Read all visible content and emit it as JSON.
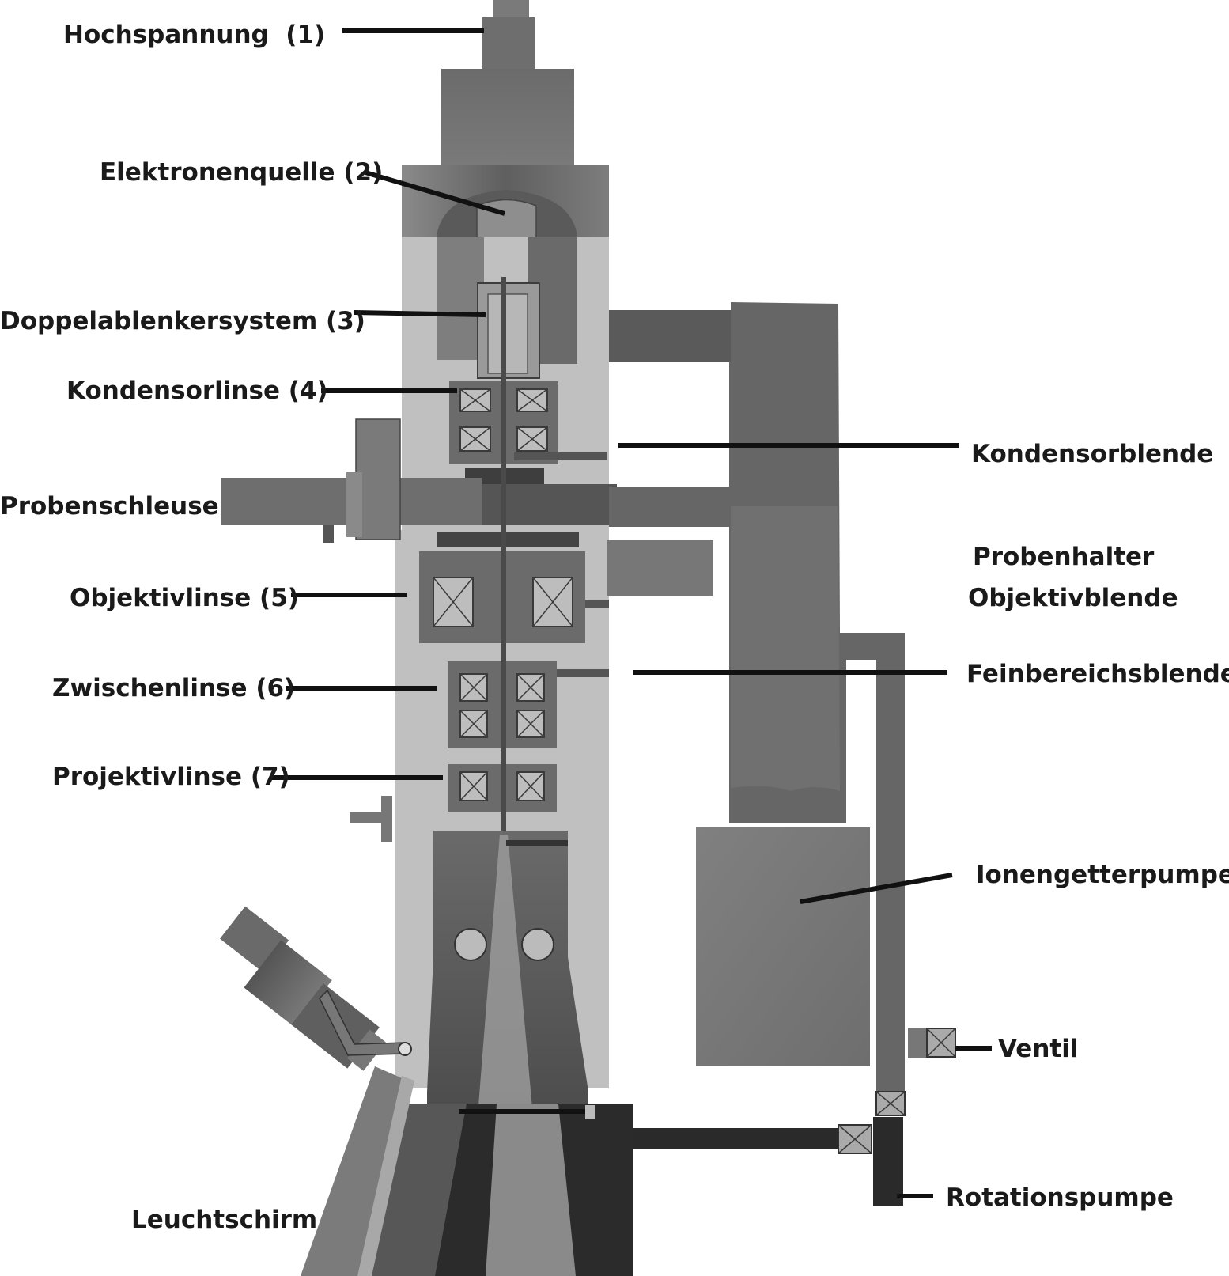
{
  "diagram": {
    "title": "",
    "labels": {
      "hochspannung": "Hochspannung  (1)",
      "elektronenquelle": "Elektronenquelle (2)",
      "doppelablenkersystem": "Doppelablenkersystem (3)",
      "kondensorlinse": "Kondensorlinse (4)",
      "probenschleuse": "Probenschleuse",
      "objektivlinse": "Objektivlinse (5)",
      "zwischenlinse": "Zwischenlinse (6)",
      "projektivlinse": "Projektivlinse (7)",
      "leuchtschirm": "Leuchtschirm",
      "kondensorblende": "Kondensorblende",
      "probenhalter": "Probenhalter",
      "objektivblende": "Objektivblende",
      "feinbereichsblende": "Feinbereichsblende",
      "ionengetterpumpe": "Ionengetterpumpe",
      "ventil": "Ventil",
      "rotationspumpe": "Rotationspumpe"
    },
    "colors": {
      "background": "#ffffff",
      "column_light": "#bcbcbc",
      "column_mid": "#7d7d7d",
      "column_dark": "#4a4a4a",
      "column_darkest": "#262626",
      "label_text": "#1a1a1a"
    }
  }
}
